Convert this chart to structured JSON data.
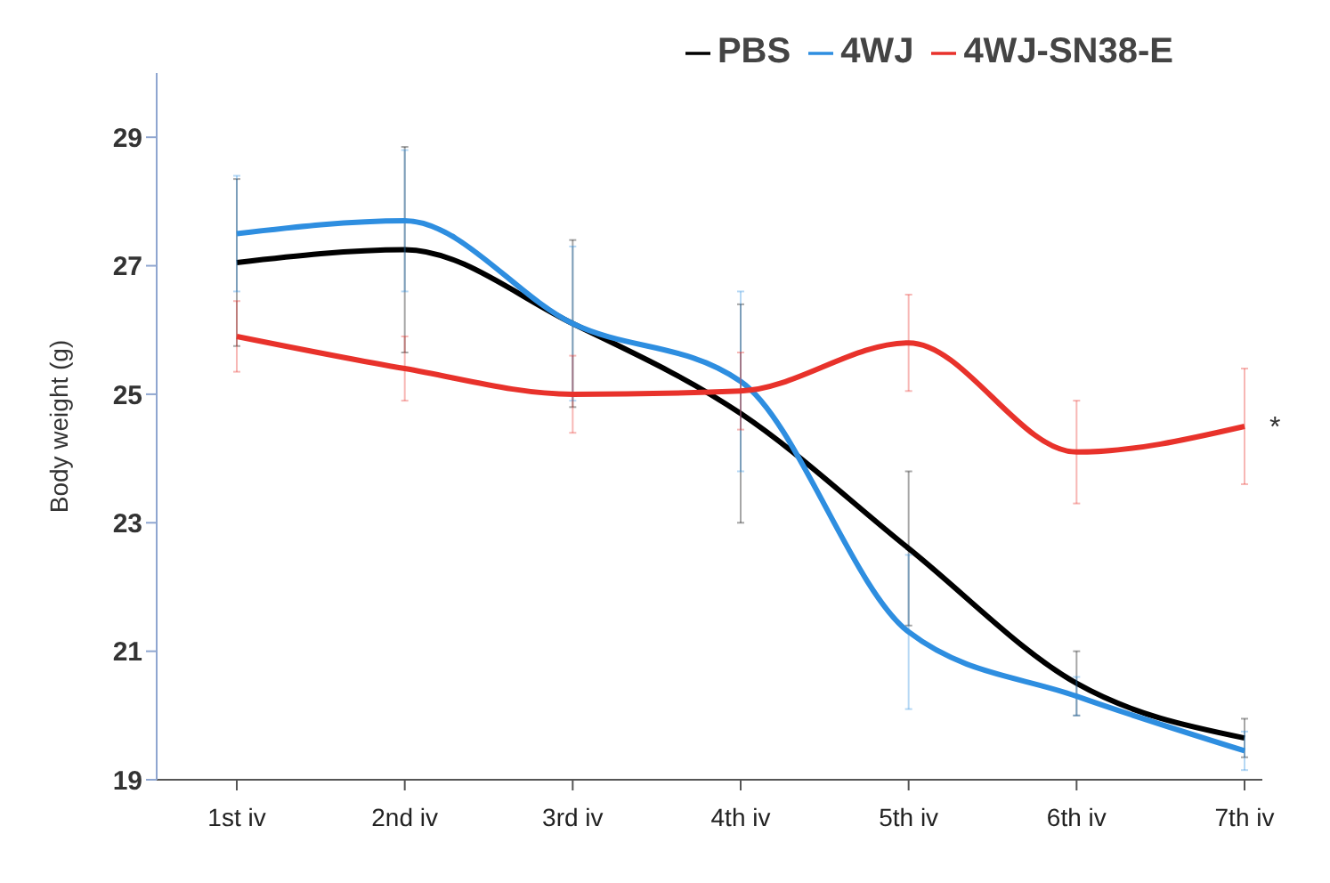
{
  "chart_data": {
    "type": "line",
    "ylabel": "Body weight (g)",
    "categories": [
      "1st iv",
      "2nd iv",
      "3rd iv",
      "4th iv",
      "5th iv",
      "6th iv",
      "7th iv"
    ],
    "series": [
      {
        "name": "PBS",
        "color": "#000000",
        "values": [
          27.05,
          27.25,
          26.1,
          24.7,
          22.6,
          20.5,
          19.65
        ],
        "errors": [
          1.3,
          1.6,
          1.3,
          1.7,
          1.2,
          0.5,
          0.3
        ]
      },
      {
        "name": "4WJ",
        "color": "#2e8ee0",
        "values": [
          27.5,
          27.7,
          26.1,
          25.2,
          21.3,
          20.3,
          19.45
        ],
        "errors": [
          0.9,
          1.1,
          1.2,
          1.4,
          1.2,
          0.3,
          0.3
        ]
      },
      {
        "name": "4WJ-SN38-E",
        "color": "#e8322b",
        "values": [
          25.9,
          25.4,
          25.0,
          25.05,
          25.8,
          24.1,
          24.5
        ],
        "errors": [
          0.55,
          0.5,
          0.6,
          0.6,
          0.75,
          0.8,
          0.9
        ]
      }
    ],
    "ylim": [
      19,
      30
    ],
    "yticks": [
      19,
      21,
      23,
      25,
      27,
      29
    ],
    "grid": false,
    "legend": "top right",
    "marker": "none",
    "line_style": "solid",
    "annotations": [
      {
        "text": "*",
        "x": "7th iv",
        "y": 24.5
      }
    ]
  }
}
